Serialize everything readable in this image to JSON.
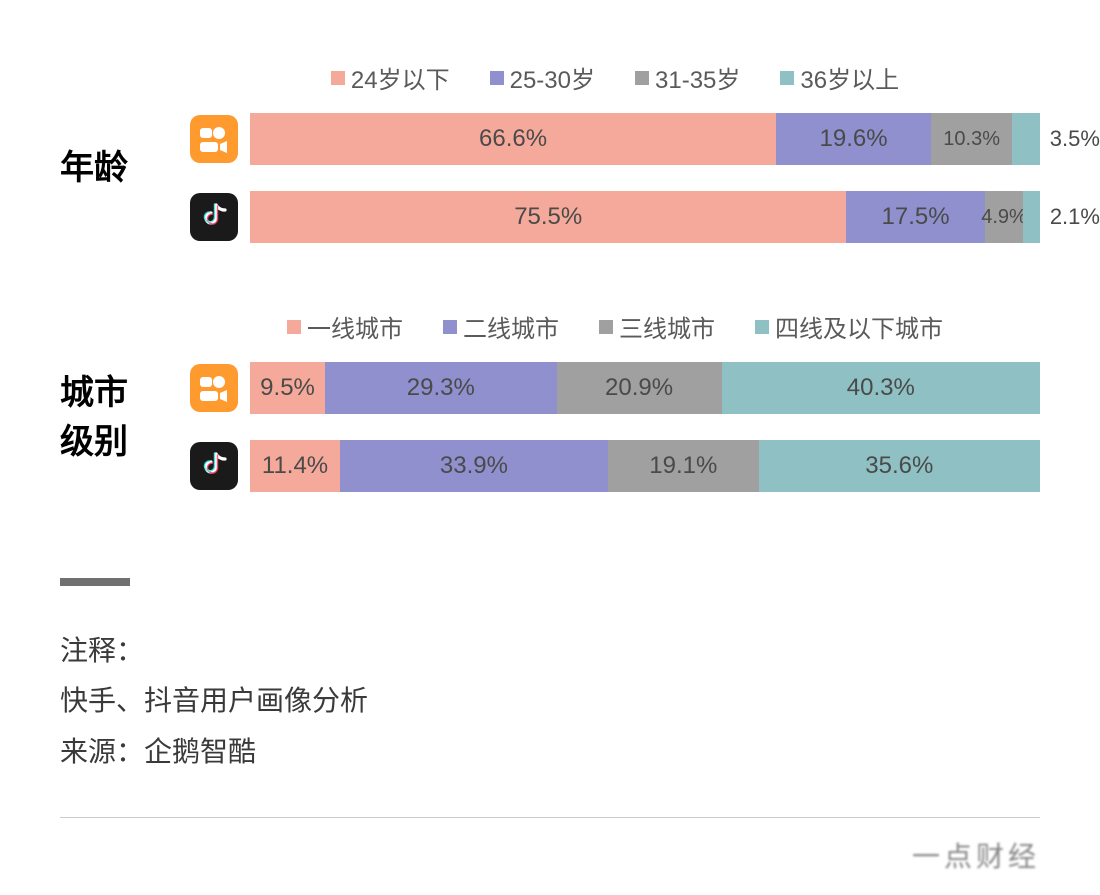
{
  "colors": {
    "c1": "#f5a99a",
    "c2": "#9090cf",
    "c3": "#a0a0a0",
    "c4": "#8fc0c4",
    "kuaishou_bg": "#ff9a2e",
    "douyin_bg": "#1a1a1a"
  },
  "sections": [
    {
      "label": "年龄",
      "legend": [
        {
          "label": "24岁以下",
          "color": "c1"
        },
        {
          "label": "25-30岁",
          "color": "c2"
        },
        {
          "label": "31-35岁",
          "color": "c3"
        },
        {
          "label": "36岁以上",
          "color": "c4"
        }
      ],
      "rows": [
        {
          "icon": "kuaishou",
          "segments": [
            {
              "value": 66.6,
              "label": "66.6%",
              "color": "c1"
            },
            {
              "value": 19.6,
              "label": "19.6%",
              "color": "c2"
            },
            {
              "value": 10.3,
              "label": "10.3%",
              "color": "c3",
              "small": true
            },
            {
              "value": 3.5,
              "label": "3.5%",
              "color": "c4",
              "overflow": true
            }
          ]
        },
        {
          "icon": "douyin",
          "segments": [
            {
              "value": 75.5,
              "label": "75.5%",
              "color": "c1"
            },
            {
              "value": 17.5,
              "label": "17.5%",
              "color": "c2"
            },
            {
              "value": 4.9,
              "label": "4.9%",
              "color": "c3",
              "small": true
            },
            {
              "value": 2.1,
              "label": "2.1%",
              "color": "c4",
              "overflow": true
            }
          ]
        }
      ]
    },
    {
      "label": "城市\n级别",
      "legend": [
        {
          "label": "一线城市",
          "color": "c1"
        },
        {
          "label": "二线城市",
          "color": "c2"
        },
        {
          "label": "三线城市",
          "color": "c3"
        },
        {
          "label": "四线及以下城市",
          "color": "c4"
        }
      ],
      "rows": [
        {
          "icon": "kuaishou",
          "segments": [
            {
              "value": 9.5,
              "label": "9.5%",
              "color": "c1"
            },
            {
              "value": 29.3,
              "label": "29.3%",
              "color": "c2"
            },
            {
              "value": 20.9,
              "label": "20.9%",
              "color": "c3"
            },
            {
              "value": 40.3,
              "label": "40.3%",
              "color": "c4"
            }
          ]
        },
        {
          "icon": "douyin",
          "segments": [
            {
              "value": 11.4,
              "label": "11.4%",
              "color": "c1"
            },
            {
              "value": 33.9,
              "label": "33.9%",
              "color": "c2"
            },
            {
              "value": 19.1,
              "label": "19.1%",
              "color": "c3"
            },
            {
              "value": 35.6,
              "label": "35.6%",
              "color": "c4"
            }
          ]
        }
      ]
    }
  ],
  "footer": {
    "note_label": "注释：",
    "note_text": "快手、抖音用户画像分析",
    "source_label": "来源：",
    "source_text": "企鹅智酷"
  },
  "watermark": "一点财经"
}
